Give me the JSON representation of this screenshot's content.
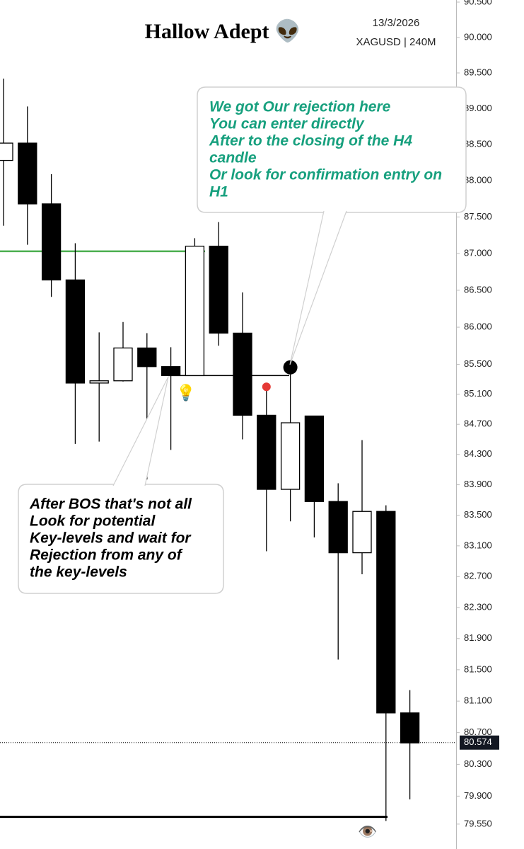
{
  "chart_data": {
    "type": "candlestick",
    "title": "Hallow Adept 👽",
    "date": "13/3/2026",
    "symbol": "XAGUSD | 240M",
    "log": true,
    "ylim": [
      79.24,
      90.53
    ],
    "yticks": [
      {
        "value": 90.5,
        "label": "90.500"
      },
      {
        "value": 90.0,
        "label": "90.000"
      },
      {
        "value": 89.5,
        "label": "89.500"
      },
      {
        "value": 89.0,
        "label": "89.000"
      },
      {
        "value": 88.5,
        "label": "88.500"
      },
      {
        "value": 88.0,
        "label": "88.000"
      },
      {
        "value": 87.5,
        "label": "87.500"
      },
      {
        "value": 87.0,
        "label": "87.000"
      },
      {
        "value": 86.5,
        "label": "86.500"
      },
      {
        "value": 86.0,
        "label": "86.000"
      },
      {
        "value": 85.5,
        "label": "85.500"
      },
      {
        "value": 85.1,
        "label": "85.100"
      },
      {
        "value": 84.7,
        "label": "84.700"
      },
      {
        "value": 84.3,
        "label": "84.300"
      },
      {
        "value": 83.9,
        "label": "83.900"
      },
      {
        "value": 83.5,
        "label": "83.500"
      },
      {
        "value": 83.1,
        "label": "83.100"
      },
      {
        "value": 82.7,
        "label": "82.700"
      },
      {
        "value": 82.3,
        "label": "82.300"
      },
      {
        "value": 81.9,
        "label": "81.900"
      },
      {
        "value": 81.5,
        "label": "81.500"
      },
      {
        "value": 81.1,
        "label": "81.100"
      },
      {
        "value": 80.7,
        "label": "80.700"
      },
      {
        "value": 80.3,
        "label": "80.300"
      },
      {
        "value": 79.9,
        "label": "79.900"
      },
      {
        "value": 79.55,
        "label": "79.550"
      }
    ],
    "open": [
      88.28,
      88.52,
      87.68,
      86.64,
      85.25,
      85.28,
      85.72,
      85.47,
      85.35,
      87.1,
      85.92,
      84.82,
      83.84,
      84.81,
      83.68,
      83.01,
      83.55,
      80.95
    ],
    "high": [
      89.42,
      89.03,
      88.09,
      87.14,
      85.93,
      86.07,
      85.92,
      85.73,
      87.21,
      87.43,
      86.47,
      85.2,
      85.41,
      84.81,
      83.92,
      84.49,
      83.63,
      81.24
    ],
    "low": [
      87.38,
      87.12,
      86.41,
      84.44,
      84.47,
      85.27,
      83.97,
      84.36,
      85.35,
      85.75,
      84.5,
      83.03,
      83.42,
      83.21,
      81.63,
      82.73,
      79.59,
      79.86
    ],
    "close": [
      88.52,
      87.68,
      86.64,
      85.25,
      85.28,
      85.72,
      85.47,
      85.35,
      87.1,
      85.92,
      84.82,
      83.84,
      84.72,
      83.68,
      83.01,
      83.55,
      80.95,
      80.57
    ],
    "last_price": {
      "value": 80.574,
      "label": "80.574"
    },
    "levels": [
      {
        "value": 87.03,
        "color": "#4caf50"
      },
      {
        "value": 85.35,
        "color": "#000000"
      },
      {
        "value": 79.64,
        "color": "#000000"
      }
    ],
    "markers": [
      {
        "index": 11,
        "value": 85.2,
        "color": "#e53935"
      },
      {
        "index": 12,
        "value": 85.46,
        "color": "#000000"
      }
    ],
    "icons": {
      "bulb": "💡",
      "eye": "👁️"
    },
    "annotations": [
      {
        "color": "#17a07e",
        "lines": [
          "We got Our rejection here",
          "You can enter directly",
          "After to the closing of the H4",
          "candle",
          "Or look for confirmation entry on",
          "H1"
        ]
      },
      {
        "color": "#000000",
        "lines": [
          "After BOS that's not all",
          "Look for potential",
          "Key-levels and wait for",
          "Rejection from any of",
          "the key-levels"
        ]
      }
    ]
  }
}
